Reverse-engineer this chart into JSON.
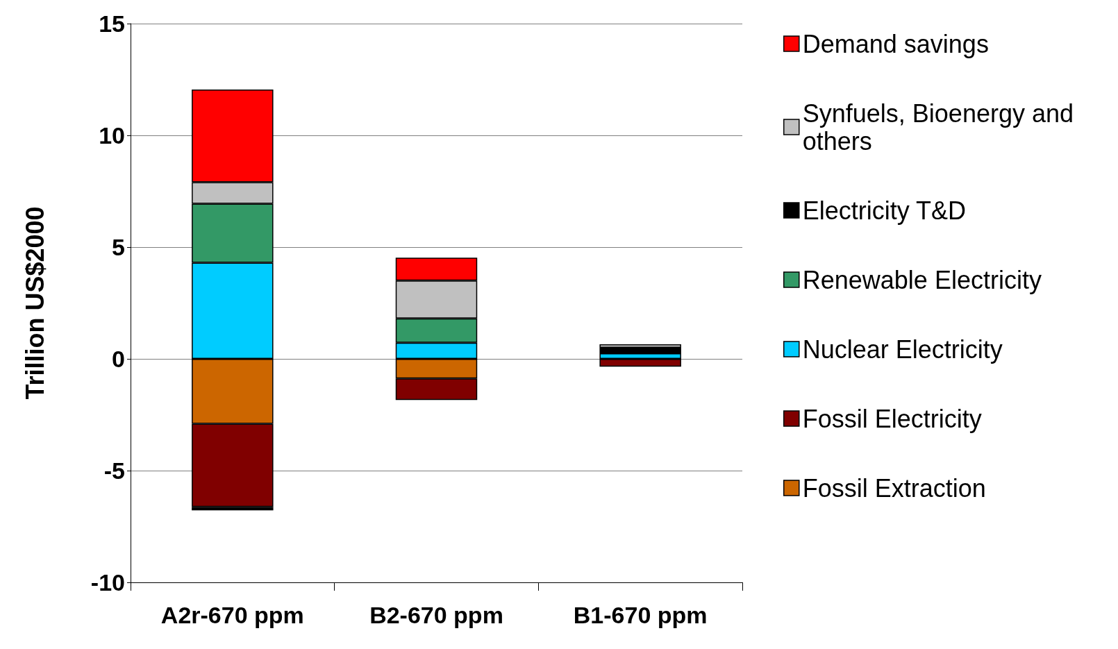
{
  "chart_data": {
    "type": "bar",
    "stacked": true,
    "ylabel": "Trillion US$2000",
    "categories": [
      "A2r-670 ppm",
      "B2-670 ppm",
      "B1-670 ppm"
    ],
    "ylim": [
      -10,
      15
    ],
    "yticks": [
      -10,
      -5,
      0,
      5,
      10,
      15
    ],
    "grid": "y",
    "legend": "right",
    "series": [
      {
        "name": "Fossil Extraction",
        "color": "#cc6600",
        "values": [
          -2.9,
          -0.88,
          null
        ]
      },
      {
        "name": "Fossil Electricity",
        "color": "#800000",
        "values": [
          -3.72,
          -0.96,
          -0.35
        ]
      },
      {
        "name": "Nuclear Electricity",
        "color": "#00ccff",
        "values": [
          4.3,
          0.72,
          0.25
        ]
      },
      {
        "name": "Renewable Electricity",
        "color": "#339966",
        "values": [
          2.64,
          1.09,
          null
        ]
      },
      {
        "name": "Electricity T&D",
        "color": "#000000",
        "values": [
          -0.16,
          null,
          0.25
        ]
      },
      {
        "name": "Synfuels, Bioenergy and others",
        "color": "#c0c0c0",
        "values": [
          0.96,
          1.69,
          0.15
        ]
      },
      {
        "name": "Demand savings",
        "color": "#ff0000",
        "values": [
          4.15,
          1.03,
          null
        ]
      }
    ]
  }
}
